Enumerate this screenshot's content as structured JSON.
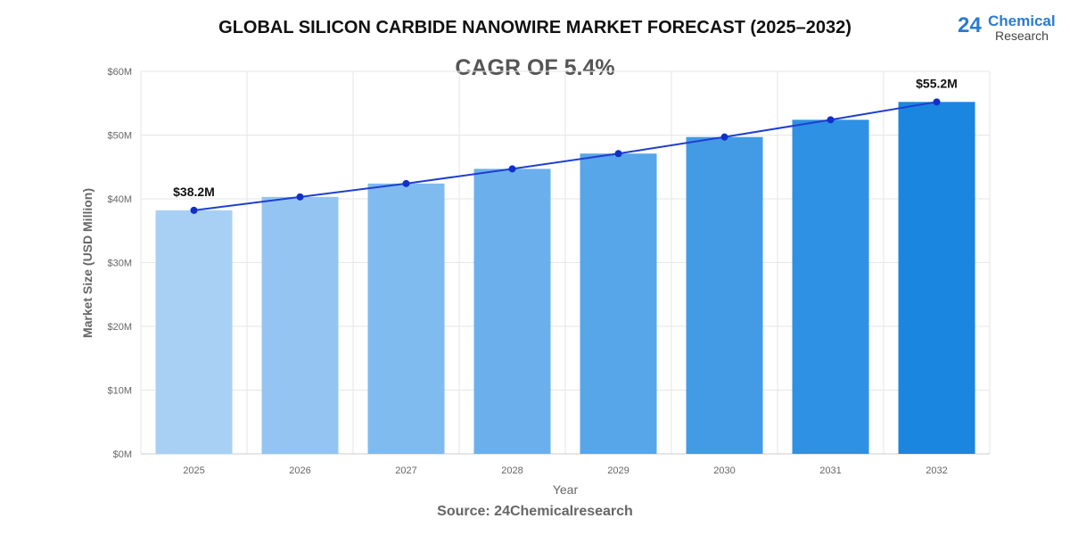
{
  "title": "GLOBAL SILICON CARBIDE NANOWIRE MARKET FORECAST (2025–2032)",
  "subtitle": "CAGR OF 5.4%",
  "logo": {
    "number": "24",
    "line1": "Chemical",
    "line2": "Research"
  },
  "source": "Source: 24Chemicalresearch",
  "chart_data": {
    "type": "bar",
    "categories": [
      "2025",
      "2026",
      "2027",
      "2028",
      "2029",
      "2030",
      "2031",
      "2032"
    ],
    "values": [
      38.2,
      40.3,
      42.4,
      44.7,
      47.1,
      49.7,
      52.4,
      55.2
    ],
    "line_overlay": true,
    "xlabel": "Year",
    "ylabel": "Market Size (USD Million)",
    "ylim": [
      0,
      60
    ],
    "yticks": [
      "$0M",
      "$10M",
      "$20M",
      "$30M",
      "$40M",
      "$50M",
      "$60M"
    ],
    "data_labels": {
      "0": "$38.2M",
      "7": "$55.2M"
    },
    "grid": true,
    "colors": {
      "bar_start": "#a8d0f5",
      "bar_end": "#1a86e0",
      "line": "#1f3fd0",
      "point": "#1030c8"
    }
  }
}
